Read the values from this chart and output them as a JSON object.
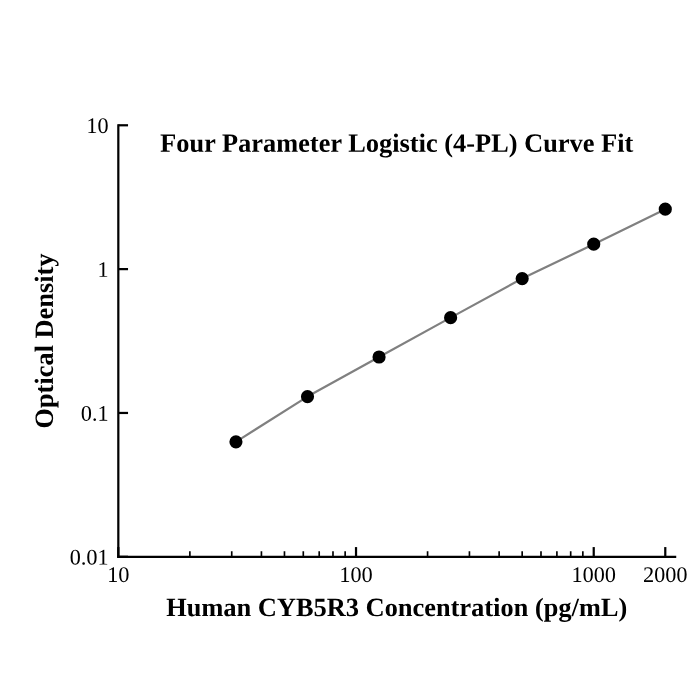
{
  "chart_data": {
    "type": "scatter",
    "title": "Four Parameter Logistic (4-PL) Curve Fit",
    "xlabel": "Human CYB5R3 Concentration (pg/mL)",
    "ylabel": "Optical Density",
    "log": "xy",
    "xlim": [
      10,
      2200
    ],
    "ylim": [
      0.01,
      10
    ],
    "xticks": [
      10,
      100,
      1000,
      2000
    ],
    "yticks": [
      0.01,
      0.1,
      1,
      10
    ],
    "grid": false,
    "legend": false,
    "series": [
      {
        "type": "line",
        "color": "#808080",
        "marker": "none",
        "x": [
          31.25,
          62.5,
          125,
          250,
          500,
          1000,
          2000
        ],
        "values": [
          0.063,
          0.13,
          0.245,
          0.46,
          0.86,
          1.49,
          2.61
        ]
      },
      {
        "color": "#000000",
        "marker": "circle",
        "x": [
          31.25,
          62.5,
          125,
          250,
          500,
          1000,
          2000
        ],
        "values": [
          0.063,
          0.13,
          0.245,
          0.46,
          0.86,
          1.49,
          2.61
        ]
      }
    ]
  }
}
